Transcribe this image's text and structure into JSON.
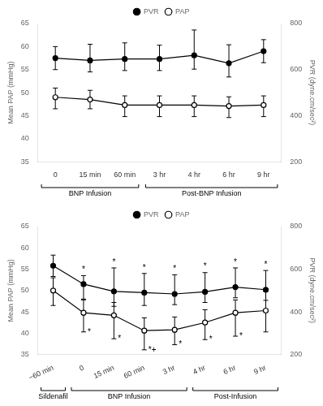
{
  "chart_data": [
    {
      "type": "line",
      "categories": [
        "0",
        "15 min",
        "60 min",
        "3 hr",
        "4 hr",
        "6 hr",
        "9 hr"
      ],
      "series": [
        {
          "name": "PVR",
          "color": "#000000",
          "marker": "circle",
          "values": [
            57.5,
            57.0,
            57.3,
            57.3,
            58.1,
            56.4,
            59.0
          ],
          "error_minus": [
            2.5,
            2.5,
            2.5,
            2.5,
            3.0,
            3.0,
            2.5
          ],
          "error_plus": [
            2.5,
            3.5,
            3.5,
            3.0,
            5.5,
            4.0,
            2.5
          ]
        },
        {
          "name": "PAP",
          "color": "#000000",
          "marker": "open_circle",
          "values": [
            49.0,
            48.5,
            47.3,
            47.3,
            47.3,
            47.1,
            47.3
          ],
          "error_minus": [
            2.5,
            2.0,
            2.5,
            2.5,
            2.5,
            2.5,
            2.5
          ],
          "error_plus": [
            2.0,
            2.0,
            2.0,
            2.0,
            2.0,
            2.0,
            2.0
          ]
        }
      ],
      "ylabel": "Mean PAP (mmHg)",
      "y2label": "PVR (dyne.cm/sec²)",
      "ylim": [
        35,
        65
      ],
      "yticks": [
        35,
        40,
        45,
        50,
        55,
        60,
        65
      ],
      "y2lim": [
        200,
        800
      ],
      "y2ticks": [
        200,
        400,
        600,
        800
      ],
      "grid": false,
      "legend": "top",
      "brackets": [
        {
          "label": "BNP Infusion",
          "from": "0",
          "to": "60 min"
        },
        {
          "label": "Post-BNP Infusion",
          "from": "3 hr",
          "to": "9 hr"
        }
      ]
    },
    {
      "type": "line",
      "categories": [
        "−60 min",
        "0",
        "15 min",
        "60 min",
        "3 hr",
        "4 hr",
        "6 hr",
        "9 hr"
      ],
      "series": [
        {
          "name": "PVR",
          "color": "#000000",
          "marker": "circle",
          "values": [
            55.8,
            51.5,
            49.8,
            49.5,
            49.2,
            49.7,
            50.8,
            50.2
          ],
          "error_minus": [
            2.5,
            3.5,
            3.5,
            3.0,
            2.5,
            2.5,
            2.5,
            2.5
          ],
          "error_plus": [
            2.5,
            2.0,
            5.5,
            4.5,
            4.5,
            4.5,
            4.5,
            4.5
          ],
          "point_labels": [
            null,
            "*",
            "*",
            "*",
            "*",
            "*",
            "*",
            "*"
          ]
        },
        {
          "name": "PAP",
          "color": "#000000",
          "marker": "open_circle",
          "values": [
            50.0,
            44.8,
            44.2,
            40.6,
            40.8,
            42.5,
            44.8,
            45.3
          ],
          "error_minus": [
            3.5,
            4.5,
            5.5,
            4.5,
            3.5,
            4.0,
            5.5,
            5.0
          ],
          "error_plus": [
            3.0,
            3.0,
            3.0,
            3.0,
            3.0,
            3.0,
            3.0,
            4.5
          ],
          "point_labels": [
            null,
            "*",
            "*",
            "*+",
            "*",
            "*",
            "*",
            null
          ]
        }
      ],
      "ylabel": "Mean PAP (mmHg)",
      "y2label": "PVR (dyne.cm/sec²)",
      "ylim": [
        35,
        65
      ],
      "yticks": [
        35,
        40,
        45,
        50,
        55,
        60,
        65
      ],
      "y2lim": [
        200,
        800
      ],
      "y2ticks": [
        200,
        400,
        600,
        800
      ],
      "grid": false,
      "legend": "top",
      "brackets": [
        {
          "label": "Sildenafil",
          "from": "−60 min",
          "to": "−60 min"
        },
        {
          "label": "BNP Infusion",
          "from": "0",
          "to": "3 hr"
        },
        {
          "label": "Post-Infusion",
          "from": "4 hr",
          "to": "9 hr"
        }
      ]
    }
  ]
}
